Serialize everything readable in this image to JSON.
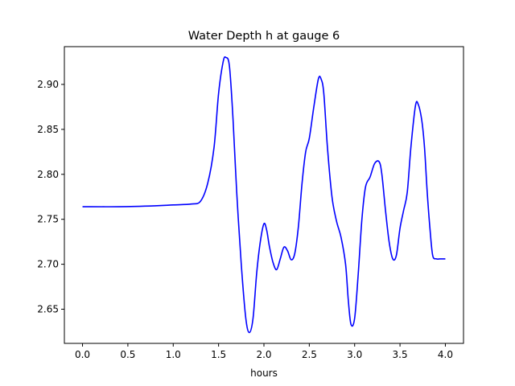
{
  "chart_data": {
    "type": "line",
    "title": "Water Depth h at gauge 6",
    "xlabel": "hours",
    "ylabel": "",
    "xlim": [
      -0.2,
      4.2
    ],
    "ylim": [
      2.612,
      2.942
    ],
    "xticks": [
      0.0,
      0.5,
      1.0,
      1.5,
      2.0,
      2.5,
      3.0,
      3.5,
      4.0
    ],
    "xtick_labels": [
      "0.0",
      "0.5",
      "1.0",
      "1.5",
      "2.0",
      "2.5",
      "3.0",
      "3.5",
      "4.0"
    ],
    "yticks": [
      2.65,
      2.7,
      2.75,
      2.8,
      2.85,
      2.9
    ],
    "ytick_labels": [
      "2.65",
      "2.70",
      "2.75",
      "2.80",
      "2.85",
      "2.90"
    ],
    "grid": false,
    "series": [
      {
        "color": "#0000ff",
        "x": [
          0.0,
          0.4,
          0.8,
          1.0,
          1.2,
          1.3,
          1.38,
          1.45,
          1.5,
          1.55,
          1.58,
          1.62,
          1.66,
          1.7,
          1.75,
          1.8,
          1.84,
          1.88,
          1.92,
          1.96,
          2.0,
          2.03,
          2.06,
          2.1,
          2.14,
          2.18,
          2.22,
          2.26,
          2.3,
          2.34,
          2.38,
          2.42,
          2.46,
          2.5,
          2.55,
          2.6,
          2.63,
          2.66,
          2.7,
          2.75,
          2.8,
          2.85,
          2.9,
          2.93,
          2.96,
          3.0,
          3.04,
          3.08,
          3.12,
          3.17,
          3.22,
          3.27,
          3.3,
          3.34,
          3.38,
          3.42,
          3.46,
          3.5,
          3.54,
          3.58,
          3.62,
          3.67,
          3.7,
          3.74,
          3.77,
          3.8,
          3.83,
          3.86,
          3.9,
          3.94,
          3.97,
          4.0
        ],
        "y": [
          2.764,
          2.764,
          2.765,
          2.766,
          2.767,
          2.77,
          2.79,
          2.83,
          2.89,
          2.925,
          2.93,
          2.92,
          2.86,
          2.78,
          2.7,
          2.64,
          2.624,
          2.64,
          2.69,
          2.725,
          2.745,
          2.738,
          2.72,
          2.702,
          2.694,
          2.706,
          2.719,
          2.715,
          2.705,
          2.712,
          2.742,
          2.79,
          2.825,
          2.84,
          2.875,
          2.906,
          2.906,
          2.89,
          2.83,
          2.775,
          2.748,
          2.73,
          2.7,
          2.66,
          2.633,
          2.64,
          2.69,
          2.75,
          2.786,
          2.797,
          2.812,
          2.814,
          2.8,
          2.76,
          2.725,
          2.706,
          2.71,
          2.74,
          2.76,
          2.78,
          2.83,
          2.876,
          2.878,
          2.86,
          2.83,
          2.78,
          2.74,
          2.71,
          2.706,
          2.706,
          2.706,
          2.706
        ]
      }
    ]
  }
}
